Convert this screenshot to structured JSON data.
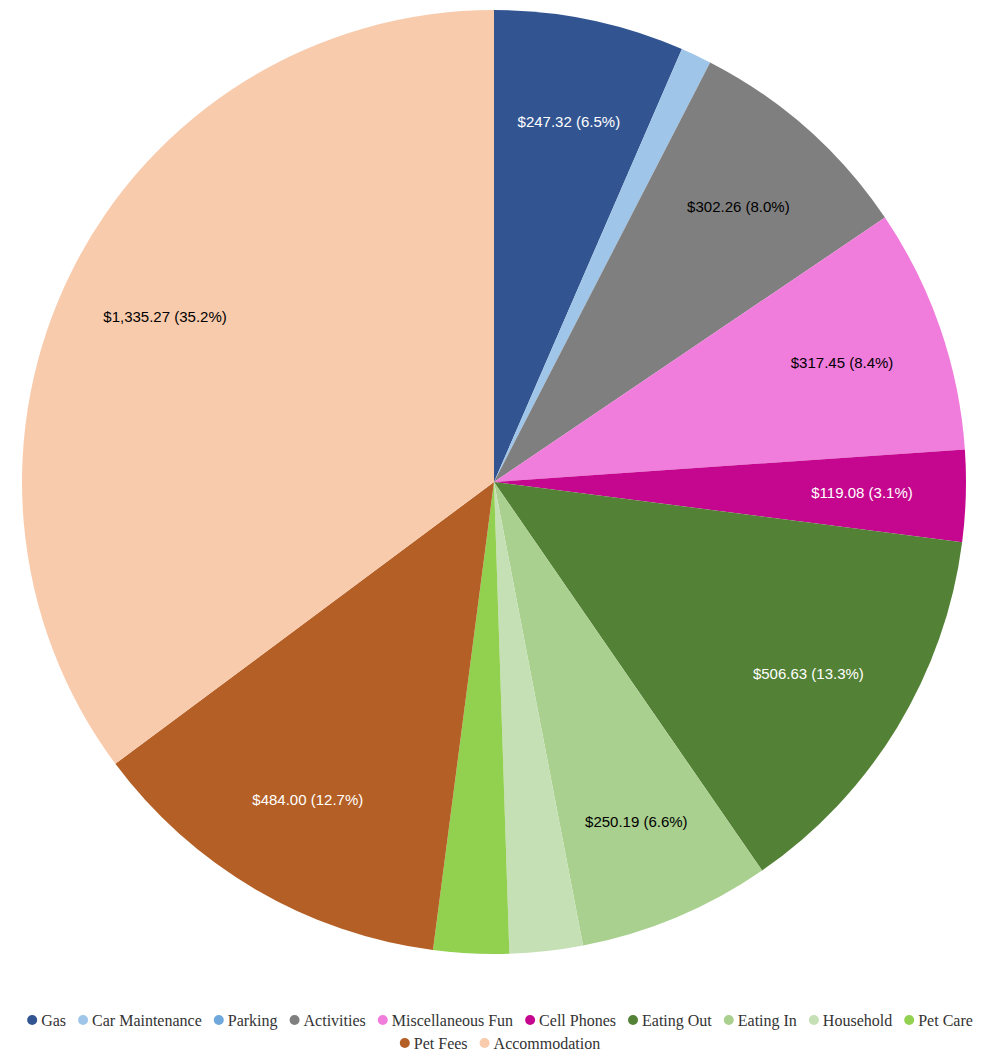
{
  "chart_data": {
    "type": "pie",
    "categories": [
      "Gas",
      "Car Maintenance",
      "Parking",
      "Activities",
      "Miscellaneous Fun",
      "Cell Phones",
      "Eating Out",
      "Eating In",
      "Household",
      "Pet Care",
      "Pet Fees",
      "Accommodation"
    ],
    "values": [
      247.32,
      40,
      0,
      302.26,
      317.45,
      119.08,
      506.63,
      250.19,
      95,
      98,
      484.0,
      1335.27
    ],
    "value_labels": [
      "$247.32 (6.5%)",
      null,
      null,
      "$302.26 (8.0%)",
      "$317.45 (8.4%)",
      "$119.08 (3.1%)",
      "$506.63 (13.3%)",
      "$250.19 (6.6%)",
      null,
      null,
      "$484.00 (12.7%)",
      "$1,335.27 (35.2%)"
    ],
    "colors": [
      "#325592",
      "#9fc5e8",
      "#6fa8dc",
      "#7f7f7f",
      "#f07cdb",
      "#c5078f",
      "#538135",
      "#a9d08e",
      "#c5e0b4",
      "#92d050",
      "#b45f25",
      "#f8cbad"
    ],
    "data_labels": true,
    "legend": "bottom"
  }
}
